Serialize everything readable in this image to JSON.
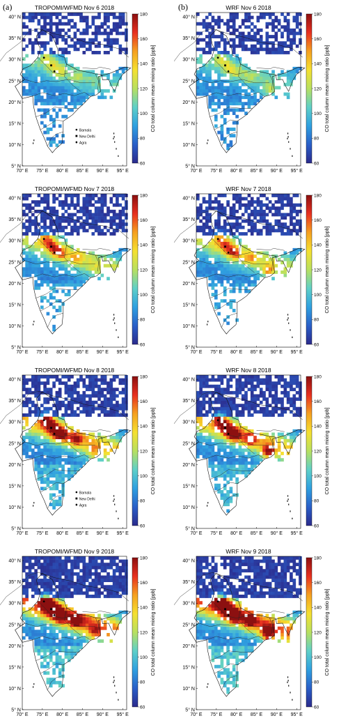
{
  "figure": {
    "column_labels": [
      "(a)",
      "(b)"
    ],
    "panels": [
      {
        "title": "TROPOMI/WFMD Nov 6 2018",
        "legend": [
          "Barnala",
          "New Delhi",
          "Agra"
        ]
      },
      {
        "title": "WRF Nov 6 2018",
        "legend": []
      },
      {
        "title": "TROPOMI/WFMD Nov 7 2018",
        "legend": []
      },
      {
        "title": "WRF Nov 7 2018",
        "legend": []
      },
      {
        "title": "TROPOMI/WFMD Nov 8 2018",
        "legend": [
          "Barnala",
          "New Delhi",
          "Agra"
        ]
      },
      {
        "title": "WRF Nov 8 2018",
        "legend": []
      },
      {
        "title": "TROPOMI/WFMD Nov 9 2018",
        "legend": []
      },
      {
        "title": "WRF Nov 9 2018",
        "legend": []
      }
    ],
    "lat_ticks": [
      "40° N",
      "35° N",
      "30° N",
      "25° N",
      "20° N",
      "15° N",
      "10° N",
      "5° N"
    ],
    "lon_ticks": [
      "70° E",
      "75° E",
      "80° E",
      "85° E",
      "90° E",
      "95° E"
    ],
    "colorbar": {
      "label": "CO total column mean mixing ratio [ppb]",
      "ticks": [
        "180",
        "160",
        "140",
        "120",
        "100",
        "80",
        "60"
      ],
      "range": [
        60,
        180
      ],
      "colors": [
        "#2b2a8c",
        "#2a5fc8",
        "#2fa0e0",
        "#5fd0c8",
        "#b8e060",
        "#f5e030",
        "#f5a020",
        "#e83020",
        "#8c1010"
      ]
    },
    "markers": {
      "Barnala": "dot",
      "New Delhi": "square",
      "Agra": "diamond"
    }
  }
}
